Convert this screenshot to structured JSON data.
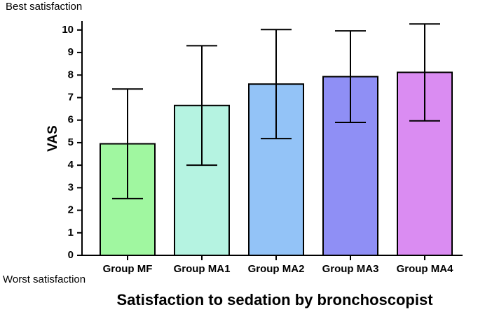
{
  "chart_data": {
    "type": "bar",
    "title": "Satisfaction to sedation by bronchoscopist",
    "y_label": "VAS",
    "annotations": [
      "Best satisfaction",
      "Worst satisfaction"
    ],
    "categories": [
      "Group MF",
      "Group MA1",
      "Group MA2",
      "Group MA3",
      "Group MA4"
    ],
    "values": [
      4.95,
      6.65,
      7.6,
      7.93,
      8.12
    ],
    "errors": [
      2.43,
      2.65,
      2.42,
      2.03,
      2.15
    ],
    "colors": [
      "#a0f7a0",
      "#b5f3e1",
      "#93c3f7",
      "#8f8ff5",
      "#da8cf2"
    ],
    "ylim": [
      0,
      10.4
    ],
    "yticks": [
      0,
      1,
      2,
      3,
      4,
      5,
      6,
      7,
      8,
      9,
      10
    ]
  }
}
